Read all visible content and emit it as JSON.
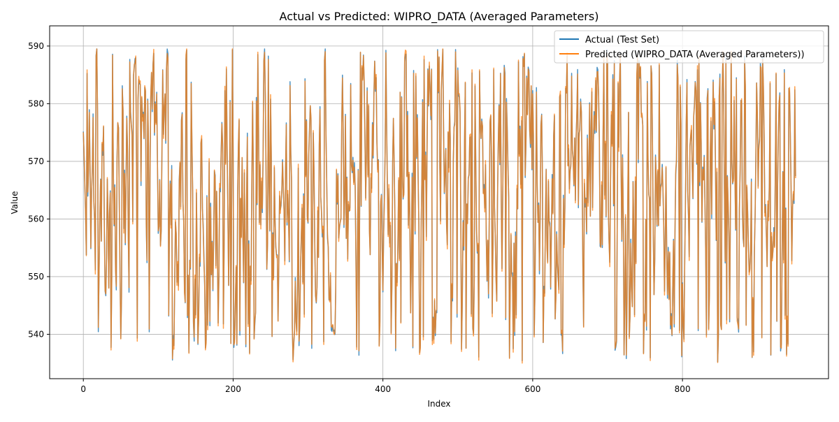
{
  "chart_data": {
    "type": "line",
    "title": "Actual vs Predicted: WIPRO_DATA (Averaged Parameters)",
    "xlabel": "Index",
    "ylabel": "Value",
    "xlim": [
      -45,
      995
    ],
    "ylim": [
      532.3,
      593.5
    ],
    "xticks": [
      0,
      200,
      400,
      600,
      800
    ],
    "yticks": [
      540,
      550,
      560,
      570,
      580,
      590
    ],
    "grid": true,
    "legend_position": "top-right",
    "series": [
      {
        "name": "Actual (Test Set)",
        "color": "#1f77b4"
      },
      {
        "name": "Predicted (WIPRO_DATA (Averaged Parameters))",
        "color": "#ff7f0e"
      }
    ],
    "x_range": [
      0,
      951
    ],
    "y_range": [
      535,
      589.5
    ]
  }
}
